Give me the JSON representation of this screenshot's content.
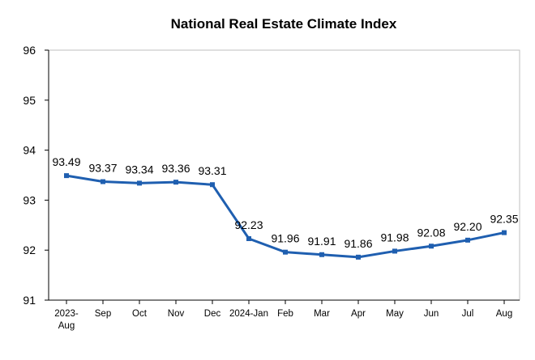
{
  "chart_data": {
    "type": "line",
    "title": "National Real Estate Climate Index",
    "xlabel": "",
    "ylabel": "",
    "categories": [
      "2023-\nAug",
      "Sep",
      "Oct",
      "Nov",
      "Dec",
      "2024-Jan",
      "Feb",
      "Mar",
      "Apr",
      "May",
      "Jun",
      "Jul",
      "Aug"
    ],
    "series": [
      {
        "values": [
          93.49,
          93.37,
          93.34,
          93.36,
          93.31,
          92.23,
          91.96,
          91.91,
          91.86,
          91.98,
          92.08,
          92.2,
          92.35
        ],
        "data_labels": [
          "93.49",
          "93.37",
          "93.34",
          "93.36",
          "93.31",
          "92.23",
          "91.96",
          "91.91",
          "91.86",
          "91.98",
          "92.08",
          "92.20",
          "92.35"
        ]
      }
    ],
    "ylim": [
      91,
      96
    ],
    "yticks": [
      "91",
      "92",
      "93",
      "94",
      "95",
      "96"
    ],
    "grid": false,
    "legend": "none",
    "colors": {
      "line": "#1f5fb0",
      "axis": "#000000"
    }
  }
}
